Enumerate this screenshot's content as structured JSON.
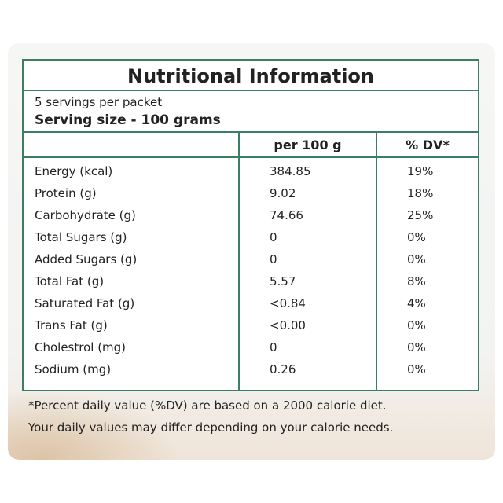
{
  "label": {
    "title": "Nutritional Information",
    "servings": "5 servings per packet",
    "serving_size": "Serving size - 100 grams",
    "table": {
      "header": [
        "",
        "per 100 g",
        "% DV*"
      ],
      "rows": [
        [
          "Energy (kcal)",
          "384.85",
          "19%"
        ],
        [
          "Protein (g)",
          "9.02",
          "18%"
        ],
        [
          "Carbohydrate (g)",
          "74.66",
          "25%"
        ],
        [
          "Total Sugars (g)",
          "0",
          "0%"
        ],
        [
          "Added Sugars (g)",
          "0",
          "0%"
        ],
        [
          "Total Fat (g)",
          "5.57",
          "8%"
        ],
        [
          "Saturated Fat (g)",
          "<0.84",
          "4%"
        ],
        [
          "Trans Fat (g)",
          "<0.00",
          "0%"
        ],
        [
          "Cholestrol (mg)",
          "0",
          "0%"
        ],
        [
          "Sodium (mg)",
          "0.26",
          "0%"
        ]
      ]
    },
    "footnote": [
      "*Percent daily value (%DV) are based on a 2000 calorie diet.",
      "Your daily values may differ depending on your calorie needs."
    ]
  }
}
